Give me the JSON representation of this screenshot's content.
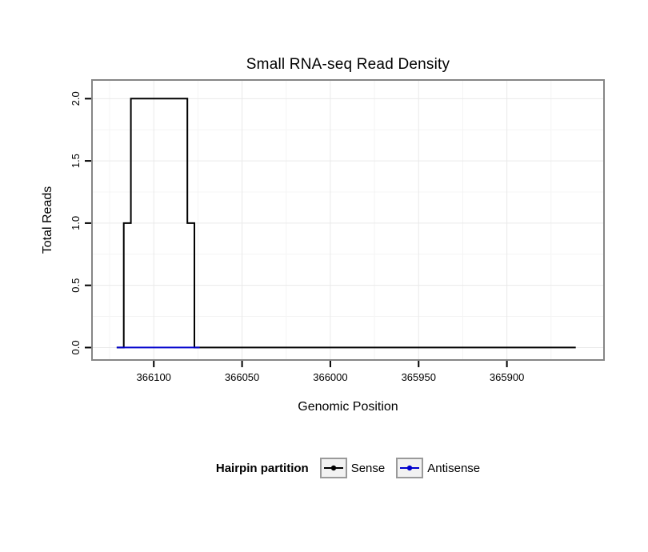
{
  "legend": {
    "title": "Hairpin partition",
    "items": [
      {
        "label": "Sense",
        "color": "#000000"
      },
      {
        "label": "Antisense",
        "color": "#0000CD"
      }
    ]
  },
  "chart_data": {
    "type": "line",
    "subtype": "step",
    "title": "Small RNA-seq Read Density",
    "xlabel": "Genomic Position",
    "ylabel": "Total Reads",
    "x_reversed": true,
    "x_range": [
      366135,
      365845
    ],
    "ylim": [
      -0.1,
      2.15
    ],
    "x_ticks": [
      366100,
      366050,
      366000,
      365950,
      365900
    ],
    "y_ticks": [
      "0.0",
      "0.5",
      "1.0",
      "1.5",
      "2.0"
    ],
    "grid": true,
    "legend_position": "bottom",
    "legend_title": "Hairpin partition",
    "series": [
      {
        "name": "Sense",
        "color": "#000000",
        "points": [
          [
            366121,
            0
          ],
          [
            366117,
            0
          ],
          [
            366117,
            1
          ],
          [
            366113,
            1
          ],
          [
            366113,
            2
          ],
          [
            366081,
            2
          ],
          [
            366081,
            1
          ],
          [
            366077,
            1
          ],
          [
            366077,
            0
          ],
          [
            365861,
            0
          ]
        ]
      },
      {
        "name": "Antisense",
        "color": "#0000CD",
        "points": [
          [
            366121,
            0
          ],
          [
            366074,
            0
          ]
        ]
      }
    ]
  }
}
